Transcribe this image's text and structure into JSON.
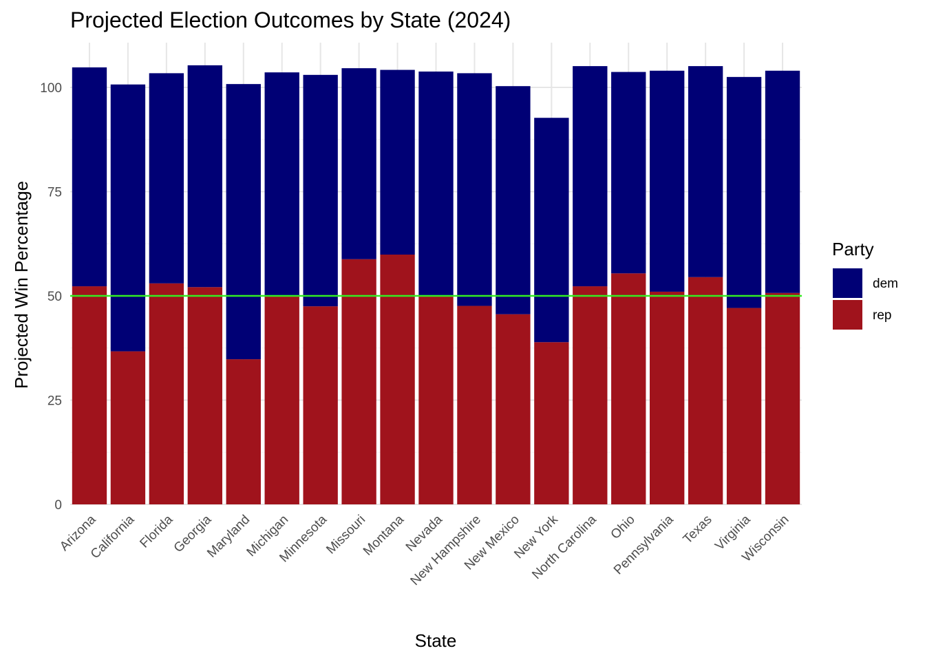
{
  "chart_data": {
    "type": "bar",
    "stacked": true,
    "title": "Projected Election Outcomes by State (2024)",
    "xlabel": "State",
    "ylabel": "Projected Win Percentage",
    "categories": [
      "Arizona",
      "California",
      "Florida",
      "Georgia",
      "Maryland",
      "Michigan",
      "Minnesota",
      "Missouri",
      "Montana",
      "Nevada",
      "New Hampshire",
      "New Mexico",
      "New York",
      "North Carolina",
      "Ohio",
      "Pennsylvania",
      "Texas",
      "Virginia",
      "Wisconsin"
    ],
    "series": [
      {
        "name": "rep",
        "color": "#A0131C",
        "values": [
          52.3,
          36.7,
          53.0,
          52.1,
          34.8,
          50.0,
          47.5,
          58.8,
          59.9,
          50.1,
          47.6,
          45.6,
          38.9,
          52.3,
          55.4,
          51.0,
          54.5,
          47.1,
          50.7
        ]
      },
      {
        "name": "dem",
        "color": "#000075",
        "values": [
          52.5,
          64.0,
          50.4,
          53.2,
          66.0,
          53.6,
          55.5,
          45.8,
          44.3,
          53.7,
          55.8,
          54.7,
          53.8,
          52.8,
          48.3,
          53.0,
          50.6,
          55.4,
          53.3
        ]
      }
    ],
    "legend": {
      "title": "Party",
      "position": "right",
      "entries": [
        "dem",
        "rep"
      ]
    },
    "reference_line": {
      "y": 50,
      "color": "#33EE22"
    },
    "ylim": [
      0,
      110
    ],
    "y_ticks": [
      0,
      25,
      50,
      75,
      100
    ],
    "grid": true
  }
}
